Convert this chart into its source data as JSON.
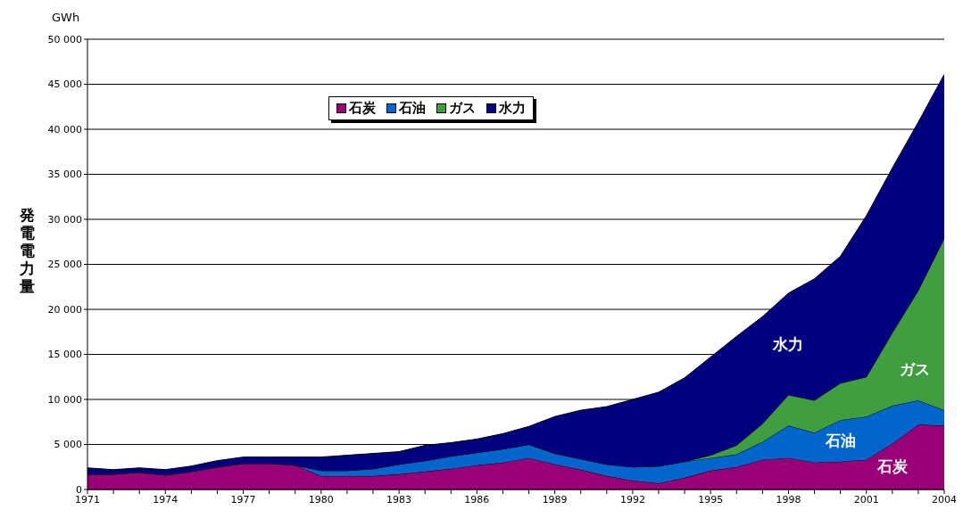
{
  "chart_data": {
    "type": "area",
    "stacked": true,
    "ylabel": "発電電力量",
    "annotations": [
      "GWh"
    ],
    "x": [
      1971,
      1972,
      1973,
      1974,
      1975,
      1976,
      1977,
      1978,
      1979,
      1980,
      1981,
      1982,
      1983,
      1984,
      1985,
      1986,
      1987,
      1988,
      1989,
      1990,
      1991,
      1992,
      1993,
      1994,
      1995,
      1996,
      1997,
      1998,
      1999,
      2000,
      2001,
      2002,
      2003,
      2004
    ],
    "xlim": [
      1971,
      2004
    ],
    "xticks": [
      1971,
      {
        "value": 1972,
        "label": null
      },
      {
        "value": 1973,
        "label": null
      },
      1974,
      {
        "value": 1975,
        "label": null
      },
      {
        "value": 1976,
        "label": null
      },
      1977,
      {
        "value": 1978,
        "label": null
      },
      {
        "value": 1979,
        "label": null
      },
      1980,
      {
        "value": 1981,
        "label": null
      },
      {
        "value": 1982,
        "label": null
      },
      1983,
      {
        "value": 1984,
        "label": null
      },
      {
        "value": 1985,
        "label": null
      },
      1986,
      {
        "value": 1987,
        "label": null
      },
      {
        "value": 1988,
        "label": null
      },
      1989,
      {
        "value": 1990,
        "label": null
      },
      {
        "value": 1991,
        "label": null
      },
      1992,
      {
        "value": 1993,
        "label": null
      },
      {
        "value": 1994,
        "label": null
      },
      1995,
      {
        "value": 1996,
        "label": null
      },
      {
        "value": 1997,
        "label": null
      },
      1998,
      {
        "value": 1999,
        "label": null
      },
      {
        "value": 2000,
        "label": null
      },
      2001,
      {
        "value": 2002,
        "label": null
      },
      {
        "value": 2003,
        "label": null
      },
      2004
    ],
    "ylim": [
      0,
      50000
    ],
    "yticks": [
      0,
      {
        "value": 5000,
        "label": "5 000"
      },
      {
        "value": 10000,
        "label": "10 000"
      },
      {
        "value": 15000,
        "label": "15 000"
      },
      {
        "value": 20000,
        "label": "20 000"
      },
      {
        "value": 25000,
        "label": "25 000"
      },
      {
        "value": 30000,
        "label": "30 000"
      },
      {
        "value": 35000,
        "label": "35 000"
      },
      {
        "value": 40000,
        "label": "40 000"
      },
      {
        "value": 45000,
        "label": "45 000"
      },
      {
        "value": 50000,
        "label": "50 000"
      }
    ],
    "grid": "y",
    "legend": "top",
    "series": [
      {
        "name": "石炭",
        "color": "#990077",
        "values": [
          1700,
          1700,
          1900,
          1600,
          2000,
          2500,
          2900,
          2900,
          2700,
          1500,
          1500,
          1500,
          1700,
          2000,
          2300,
          2700,
          3000,
          3500,
          2800,
          2200,
          1500,
          1000,
          700,
          1300,
          2100,
          2500,
          3300,
          3500,
          3000,
          3100,
          3300,
          5100,
          7200,
          7100
        ]
      },
      {
        "name": "石油",
        "color": "#0066cc",
        "values": [
          0,
          0,
          0,
          0,
          0,
          0,
          0,
          0,
          0,
          600,
          600,
          800,
          1100,
          1200,
          1400,
          1400,
          1500,
          1500,
          1200,
          1200,
          1300,
          1500,
          1900,
          1800,
          1400,
          1400,
          2000,
          3600,
          3300,
          4600,
          4800,
          4200,
          2700,
          1700
        ]
      },
      {
        "name": "ガス",
        "color": "#3f9f3f",
        "values": [
          0,
          0,
          0,
          0,
          0,
          0,
          0,
          0,
          0,
          0,
          0,
          0,
          0,
          0,
          0,
          0,
          0,
          0,
          0,
          0,
          0,
          0,
          0,
          0,
          300,
          1000,
          2000,
          3400,
          3600,
          4100,
          4400,
          8100,
          12200,
          19100
        ]
      },
      {
        "name": "水力",
        "color": "#000080",
        "values": [
          700,
          500,
          500,
          600,
          600,
          700,
          700,
          700,
          900,
          1500,
          1700,
          1700,
          1400,
          1700,
          1500,
          1500,
          1700,
          2000,
          4100,
          5400,
          6400,
          7500,
          8200,
          9300,
          10900,
          12100,
          11900,
          11300,
          13500,
          14100,
          17900,
          18300,
          18700,
          18200
        ]
      }
    ]
  }
}
